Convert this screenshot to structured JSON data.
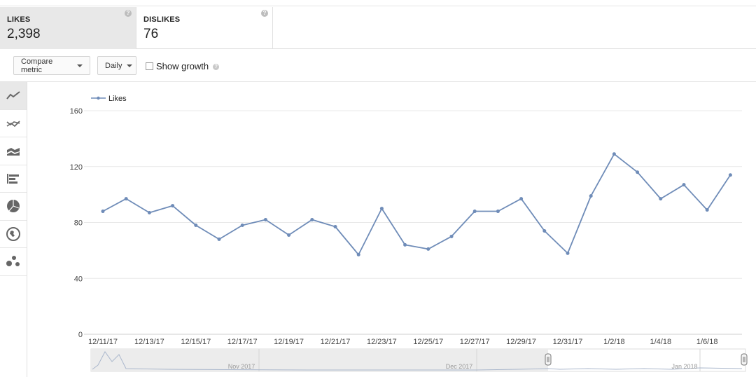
{
  "metrics": [
    {
      "label": "LIKES",
      "value": "2,398",
      "help": "?"
    },
    {
      "label": "DISLIKES",
      "value": "76",
      "help": "?"
    }
  ],
  "toolbar": {
    "compare_label": "Compare metric",
    "interval_label": "Daily",
    "growth_label": "Show growth",
    "growth_checked": false,
    "help": "?"
  },
  "rail": {
    "items": [
      "line-chart-icon",
      "multiline-chart-icon",
      "stacked-area-icon",
      "bar-chart-icon",
      "pie-chart-icon",
      "globe-map-icon",
      "bubble-chart-icon"
    ],
    "active": 0
  },
  "colors": {
    "line": "#6f8cb8",
    "grid": "#e9e9e9",
    "axis": "#cfcfcf"
  },
  "chart_data": {
    "type": "line",
    "series": [
      {
        "name": "Likes",
        "x": [
          "12/11/17",
          "12/12/17",
          "12/13/17",
          "12/14/17",
          "12/15/17",
          "12/16/17",
          "12/17/17",
          "12/18/17",
          "12/19/17",
          "12/20/17",
          "12/21/17",
          "12/22/17",
          "12/23/17",
          "12/24/17",
          "12/25/17",
          "12/26/17",
          "12/27/17",
          "12/28/17",
          "12/29/17",
          "12/30/17",
          "12/31/17",
          "1/1/18",
          "1/2/18",
          "1/3/18",
          "1/4/18",
          "1/5/18",
          "1/6/18",
          "1/7/18"
        ],
        "values": [
          88,
          97,
          87,
          92,
          78,
          68,
          78,
          82,
          71,
          82,
          77,
          57,
          90,
          64,
          61,
          70,
          88,
          88,
          97,
          74,
          58,
          99,
          129,
          116,
          97,
          107,
          89,
          114
        ]
      }
    ],
    "x_tick_labels": [
      "12/11/17",
      "12/13/17",
      "12/15/17",
      "12/17/17",
      "12/19/17",
      "12/21/17",
      "12/23/17",
      "12/25/17",
      "12/27/17",
      "12/29/17",
      "12/31/17",
      "1/2/18",
      "1/4/18",
      "1/6/18"
    ],
    "y_ticks": [
      0,
      40,
      80,
      120,
      160
    ],
    "ylim": [
      0,
      160
    ],
    "grid": true,
    "legend_position": "top-left",
    "title": "",
    "xlabel": "",
    "ylabel": "",
    "navigator": {
      "labels": [
        "Nov 2017",
        "Dec 2017",
        "Jan 2018"
      ]
    }
  }
}
